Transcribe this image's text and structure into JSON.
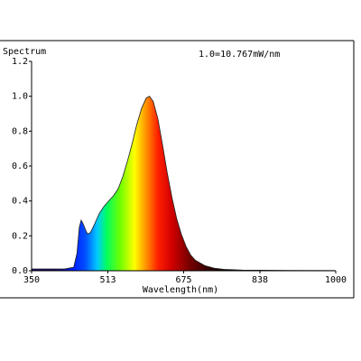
{
  "chart_data": {
    "type": "area",
    "title": "Spectrum",
    "annotation": "1.0=10.767mW/nm",
    "x_label": "Wavelength(nm)",
    "x": [
      350,
      380,
      400,
      420,
      440,
      447,
      452,
      456,
      460,
      466,
      470,
      476,
      485,
      495,
      505,
      515,
      525,
      535,
      545,
      555,
      565,
      575,
      585,
      595,
      602,
      610,
      620,
      630,
      640,
      650,
      660,
      670,
      680,
      690,
      700,
      720,
      740,
      760,
      800,
      900,
      1000
    ],
    "values": [
      0.01,
      0.01,
      0.01,
      0.01,
      0.02,
      0.1,
      0.25,
      0.29,
      0.27,
      0.23,
      0.21,
      0.22,
      0.27,
      0.33,
      0.37,
      0.4,
      0.43,
      0.47,
      0.54,
      0.63,
      0.73,
      0.84,
      0.93,
      0.99,
      1.0,
      0.97,
      0.87,
      0.72,
      0.56,
      0.42,
      0.3,
      0.21,
      0.14,
      0.09,
      0.06,
      0.03,
      0.015,
      0.008,
      0.004,
      0.002,
      0.001
    ],
    "xlim": [
      350,
      1000
    ],
    "xticks": [
      350,
      513,
      675,
      838,
      1000
    ],
    "ylim": [
      0,
      1.2
    ],
    "yticks": [
      {
        "value": 0,
        "label": "0.0"
      },
      0.2,
      0.4,
      0.6,
      0.8,
      {
        "value": 1,
        "label": "1.0"
      },
      1.2
    ]
  }
}
